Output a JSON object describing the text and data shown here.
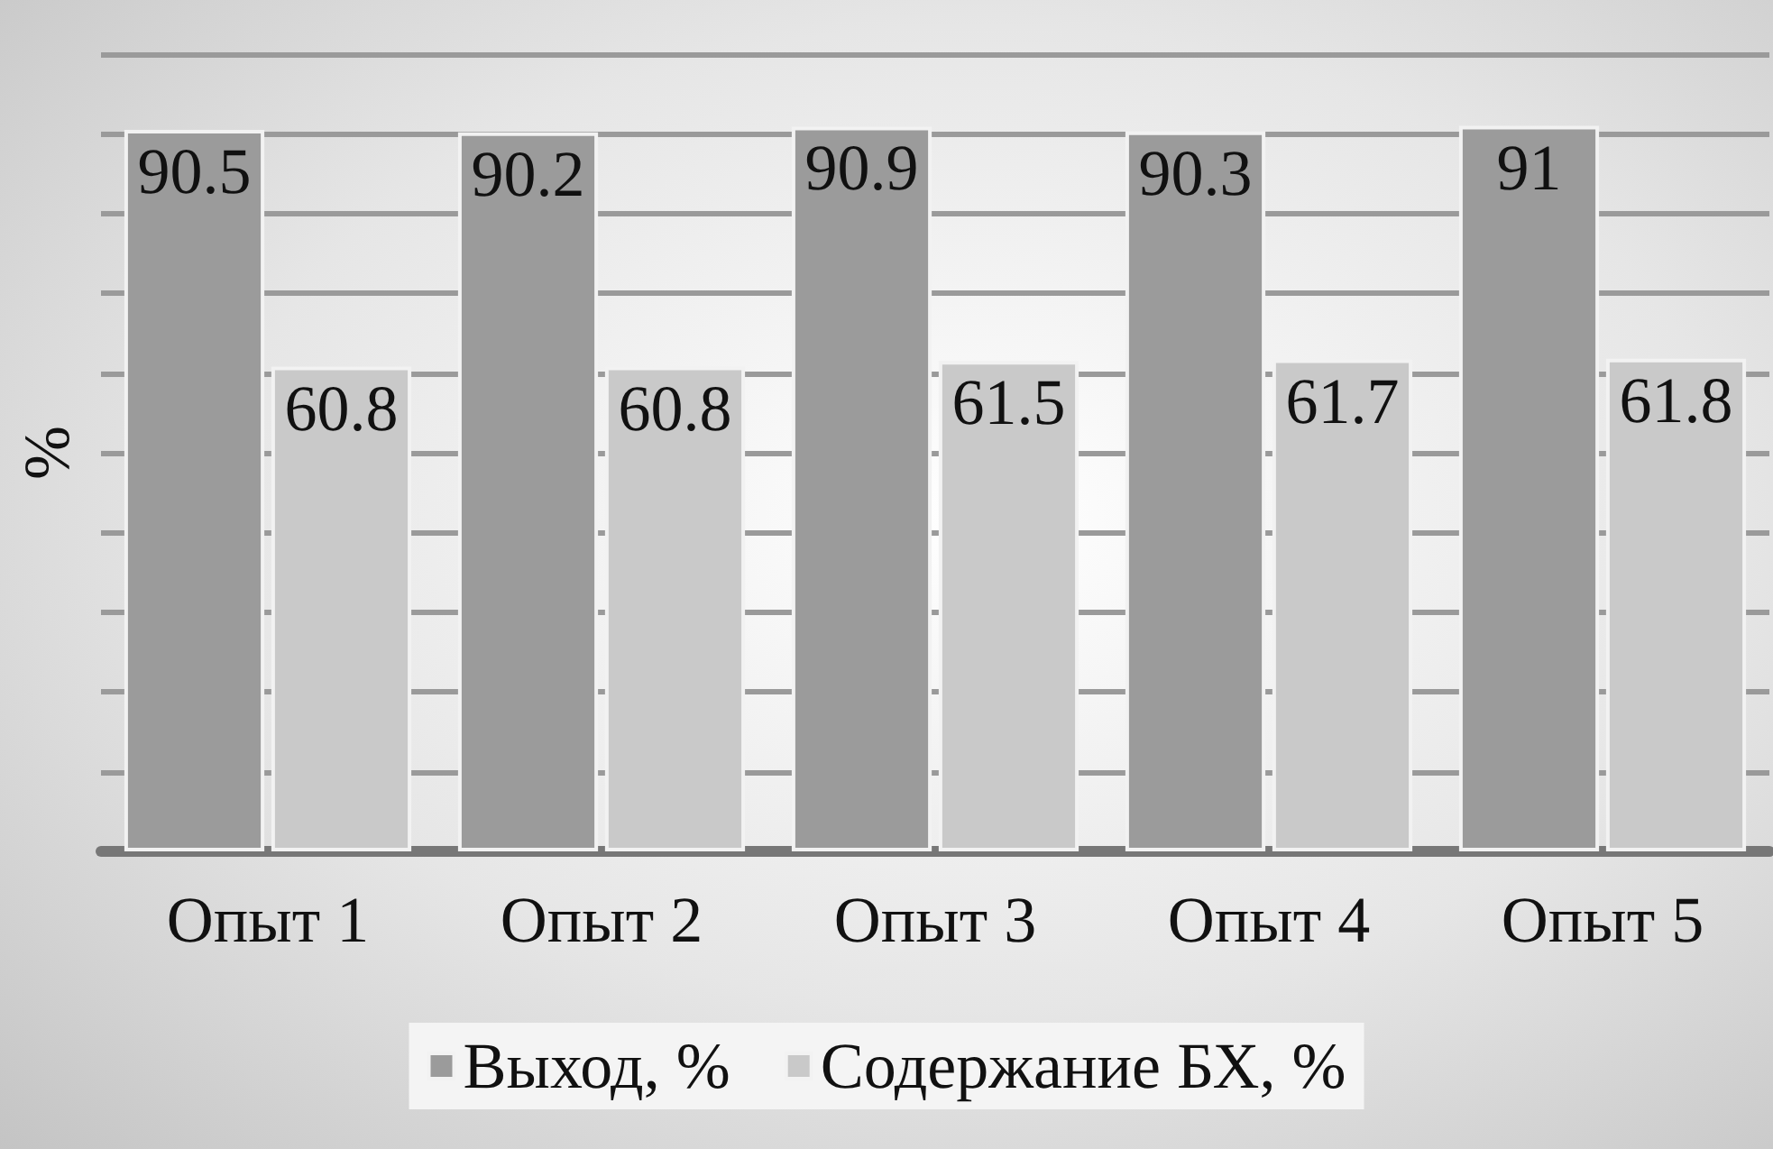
{
  "chart_data": {
    "type": "bar",
    "ylabel": "%",
    "categories": [
      "Опыт 1",
      "Опыт 2",
      "Опыт 3",
      "Опыт 4",
      "Опыт 5"
    ],
    "series": [
      {
        "name": "Выход, %",
        "color": "#9b9b9b",
        "values": [
          90.5,
          90.2,
          90.9,
          90.3,
          91
        ]
      },
      {
        "name": "Содержание БХ, %",
        "color": "#c9c9c9",
        "values": [
          60.8,
          60.8,
          61.5,
          61.7,
          61.8
        ]
      }
    ],
    "ylim": [
      0,
      100
    ],
    "yticks": [
      {
        "value": 0,
        "label": null
      },
      {
        "value": 10,
        "label": null
      },
      {
        "value": 20,
        "label": null
      },
      {
        "value": 30,
        "label": null
      },
      {
        "value": 40,
        "label": null
      },
      {
        "value": 50,
        "label": null
      },
      {
        "value": 60,
        "label": null
      },
      {
        "value": 70,
        "label": null
      },
      {
        "value": 80,
        "label": null
      },
      {
        "value": 90,
        "label": null
      },
      {
        "value": 100,
        "label": null
      }
    ],
    "tick_labels": "x",
    "grid": "y",
    "legend": "bottom",
    "data_labels": true
  }
}
